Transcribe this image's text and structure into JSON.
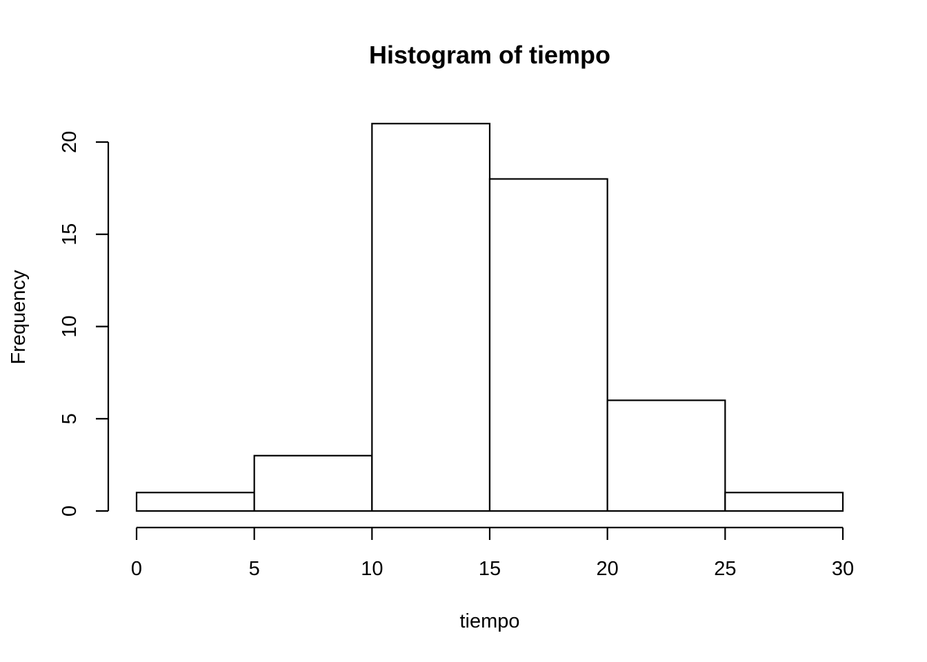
{
  "chart_data": {
    "type": "bar",
    "title": "Histogram of tiempo",
    "xlabel": "tiempo",
    "ylabel": "Frequency",
    "bins": [
      {
        "x0": 0,
        "x1": 5,
        "count": 1
      },
      {
        "x0": 5,
        "x1": 10,
        "count": 3
      },
      {
        "x0": 10,
        "x1": 15,
        "count": 21
      },
      {
        "x0": 15,
        "x1": 20,
        "count": 18
      },
      {
        "x0": 20,
        "x1": 25,
        "count": 6
      },
      {
        "x0": 25,
        "x1": 30,
        "count": 1
      }
    ],
    "xlim": [
      0,
      30
    ],
    "ylim": [
      0,
      21
    ],
    "x_ticks": [
      0,
      5,
      10,
      15,
      20,
      25,
      30
    ],
    "y_ticks": [
      0,
      5,
      10,
      15,
      20
    ],
    "grid": false,
    "colors": {
      "bar_fill": "#ffffff",
      "bar_stroke": "#000000",
      "axis": "#000000",
      "background": "#ffffff"
    }
  }
}
